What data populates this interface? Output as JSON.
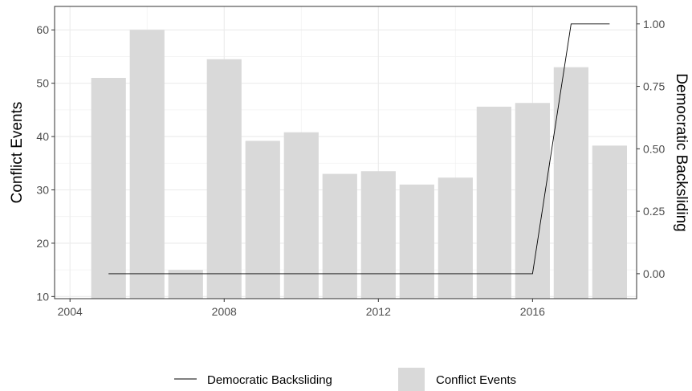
{
  "chart_data": {
    "type": "bar",
    "x": [
      2005,
      2006,
      2007,
      2008,
      2009,
      2010,
      2011,
      2012,
      2013,
      2014,
      2015,
      2016,
      2017,
      2018
    ],
    "series": [
      {
        "name": "Conflict Events",
        "type": "bar",
        "axis": "left",
        "color": "#d9d9d9",
        "values": [
          51,
          60,
          15,
          54.5,
          39.2,
          40.8,
          33,
          33.5,
          31,
          32.3,
          45.6,
          46.3,
          53,
          38.3
        ]
      },
      {
        "name": "Democratic Backsliding",
        "type": "line",
        "axis": "right",
        "color": "#000000",
        "values": [
          0,
          0,
          0,
          0,
          0,
          0,
          0,
          0,
          0,
          0,
          0,
          0,
          1,
          1
        ]
      }
    ],
    "ylabel": "Conflict Events",
    "ylabel_right": "Democratic Backsliding",
    "ylim": [
      9.6,
      64.4
    ],
    "ylim_right": [
      -0.1,
      1.07
    ],
    "xlim": [
      2003.6,
      2018.7
    ],
    "x_ticks": [
      2004,
      2008,
      2012,
      2016
    ],
    "x_tick_labels": [
      "2004",
      "2008",
      "2012",
      "2016"
    ],
    "y_ticks": [
      10,
      20,
      30,
      40,
      50,
      60
    ],
    "y_tick_labels": [
      "10",
      "20",
      "30",
      "40",
      "50",
      "60"
    ],
    "y_ticks_right": [
      0,
      0.25,
      0.5,
      0.75,
      1.0
    ],
    "y_tick_labels_right": [
      "0.00",
      "0.25",
      "0.50",
      "0.75",
      "1.00"
    ],
    "grid": true,
    "legend_position": "bottom",
    "legend": [
      {
        "label": "Democratic Backsliding",
        "kind": "line",
        "color": "#000000"
      },
      {
        "label": "Conflict Events",
        "kind": "box",
        "color": "#d9d9d9"
      }
    ]
  }
}
